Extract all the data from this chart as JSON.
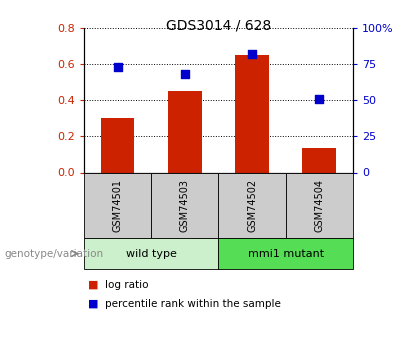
{
  "title": "GDS3014 / 628",
  "samples": [
    "GSM74501",
    "GSM74503",
    "GSM74502",
    "GSM74504"
  ],
  "log_ratio": [
    0.3,
    0.45,
    0.65,
    0.135
  ],
  "percentile_rank": [
    73,
    68,
    82,
    51
  ],
  "bar_color": "#cc2200",
  "dot_color": "#0000cc",
  "ylim_left": [
    0,
    0.8
  ],
  "ylim_right": [
    0,
    100
  ],
  "yticks_left": [
    0,
    0.2,
    0.4,
    0.6,
    0.8
  ],
  "yticks_right": [
    0,
    25,
    50,
    75,
    100
  ],
  "ytick_labels_right": [
    "0",
    "25",
    "50",
    "75",
    "100%"
  ],
  "groups": [
    {
      "label": "wild type",
      "indices": [
        0,
        1
      ],
      "color": "#ccf0cc"
    },
    {
      "label": "mmi1 mutant",
      "indices": [
        2,
        3
      ],
      "color": "#55dd55"
    }
  ],
  "left_tick_color": "#cc2200",
  "right_tick_color": "#0000cc",
  "legend_red_label": "log ratio",
  "legend_blue_label": "percentile rank within the sample",
  "genotype_label": "genotype/variation",
  "label_box_color": "#cccccc",
  "dot_size": 28
}
